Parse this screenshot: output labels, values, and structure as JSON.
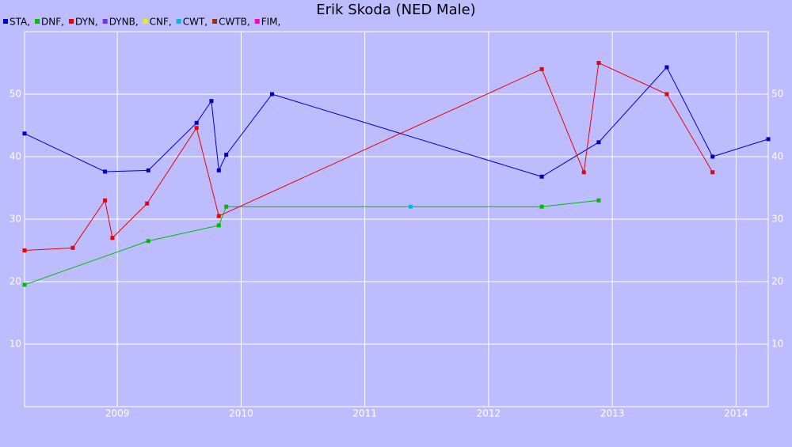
{
  "chart_data": {
    "type": "line",
    "title": "Erik Skoda (NED Male)",
    "xlim": [
      2008.25,
      2014.26
    ],
    "xticks": [
      2009,
      2010,
      2011,
      2012,
      2013,
      2014
    ],
    "ylim": [
      0,
      60
    ],
    "yticks": [
      10,
      20,
      30,
      40,
      50
    ],
    "grid": true,
    "right_axis_labels": true,
    "series": [
      {
        "name": "STA,",
        "color": "#0000cc",
        "x": [
          2008.25,
          2008.9,
          2009.25,
          2009.64,
          2009.76,
          2009.82,
          2009.88,
          2010.25,
          2012.43,
          2012.89,
          2013.44,
          2013.81,
          2014.26
        ],
        "values": [
          43.7,
          37.6,
          37.8,
          45.4,
          48.9,
          37.8,
          40.3,
          50,
          36.8,
          42.3,
          54.3,
          40,
          42.8
        ]
      },
      {
        "name": "DNF,",
        "color": "#00bb00",
        "x": [
          2008.25,
          2009.25,
          2009.82,
          2009.88,
          2012.43,
          2012.89
        ],
        "values": [
          19.5,
          26.5,
          29,
          32,
          32,
          33
        ]
      },
      {
        "name": "DYN,",
        "color": "#ee0000",
        "x": [
          2008.25,
          2008.64,
          2008.9,
          2008.96,
          2009.24,
          2009.64,
          2009.82,
          2012.43,
          2012.77,
          2012.89,
          2013.44,
          2013.81
        ],
        "values": [
          25,
          25.4,
          33,
          27,
          32.5,
          44.6,
          30.5,
          54,
          37.5,
          55,
          50,
          37.5
        ]
      },
      {
        "name": "DYNB,",
        "color": "#7733dd",
        "x": [],
        "values": []
      },
      {
        "name": "CNF,",
        "color": "#eeee00",
        "x": [],
        "values": []
      },
      {
        "name": "CWT,",
        "color": "#00bbdd",
        "x": [
          2011.37
        ],
        "values": [
          32
        ]
      },
      {
        "name": "CWTB,",
        "color": "#993300",
        "x": [],
        "values": []
      },
      {
        "name": "FIM,",
        "color": "#ff00cc",
        "x": [],
        "values": []
      }
    ]
  }
}
